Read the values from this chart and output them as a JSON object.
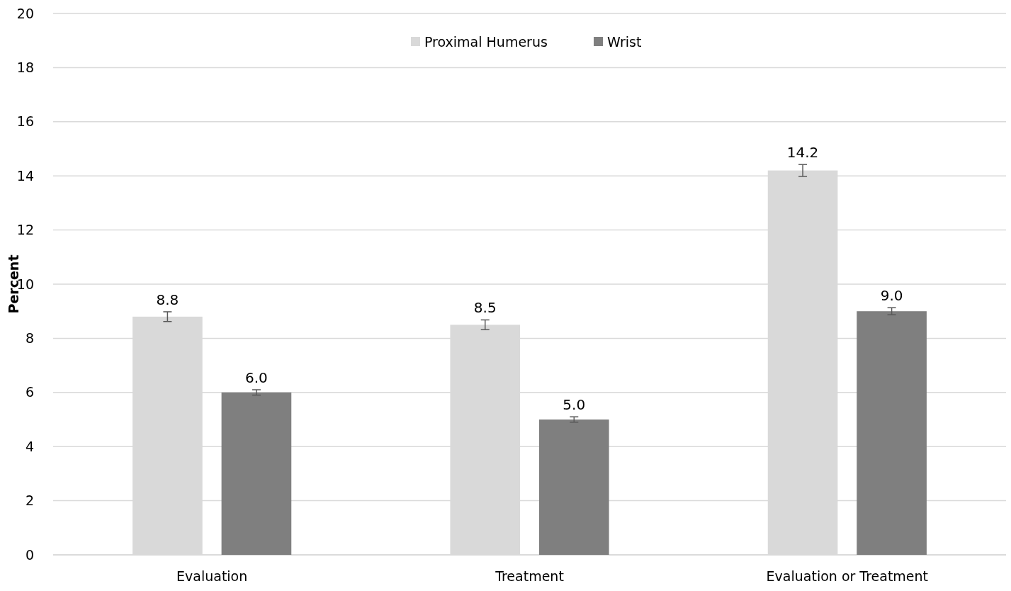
{
  "chart_data": {
    "type": "bar",
    "ylabel": "Percent",
    "categories": [
      "Evaluation",
      "Treatment",
      "Evaluation or Treatment"
    ],
    "series": [
      {
        "name": "Proximal Humerus",
        "color": "#d9d9d9",
        "values": [
          8.8,
          8.5,
          14.2
        ],
        "value_labels": [
          "8.8",
          "8.5",
          "14.2"
        ],
        "errors": [
          0.18,
          0.18,
          0.22
        ]
      },
      {
        "name": "Wrist",
        "color": "#7f7f7f",
        "values": [
          6.0,
          5.0,
          9.0
        ],
        "value_labels": [
          "6.0",
          "5.0",
          "9.0"
        ],
        "errors": [
          0.1,
          0.1,
          0.13
        ]
      }
    ],
    "ylim": [
      0,
      20
    ],
    "yticks": [
      0,
      2,
      4,
      6,
      8,
      10,
      12,
      14,
      16,
      18,
      20
    ],
    "grid": "y",
    "legend": "top"
  }
}
